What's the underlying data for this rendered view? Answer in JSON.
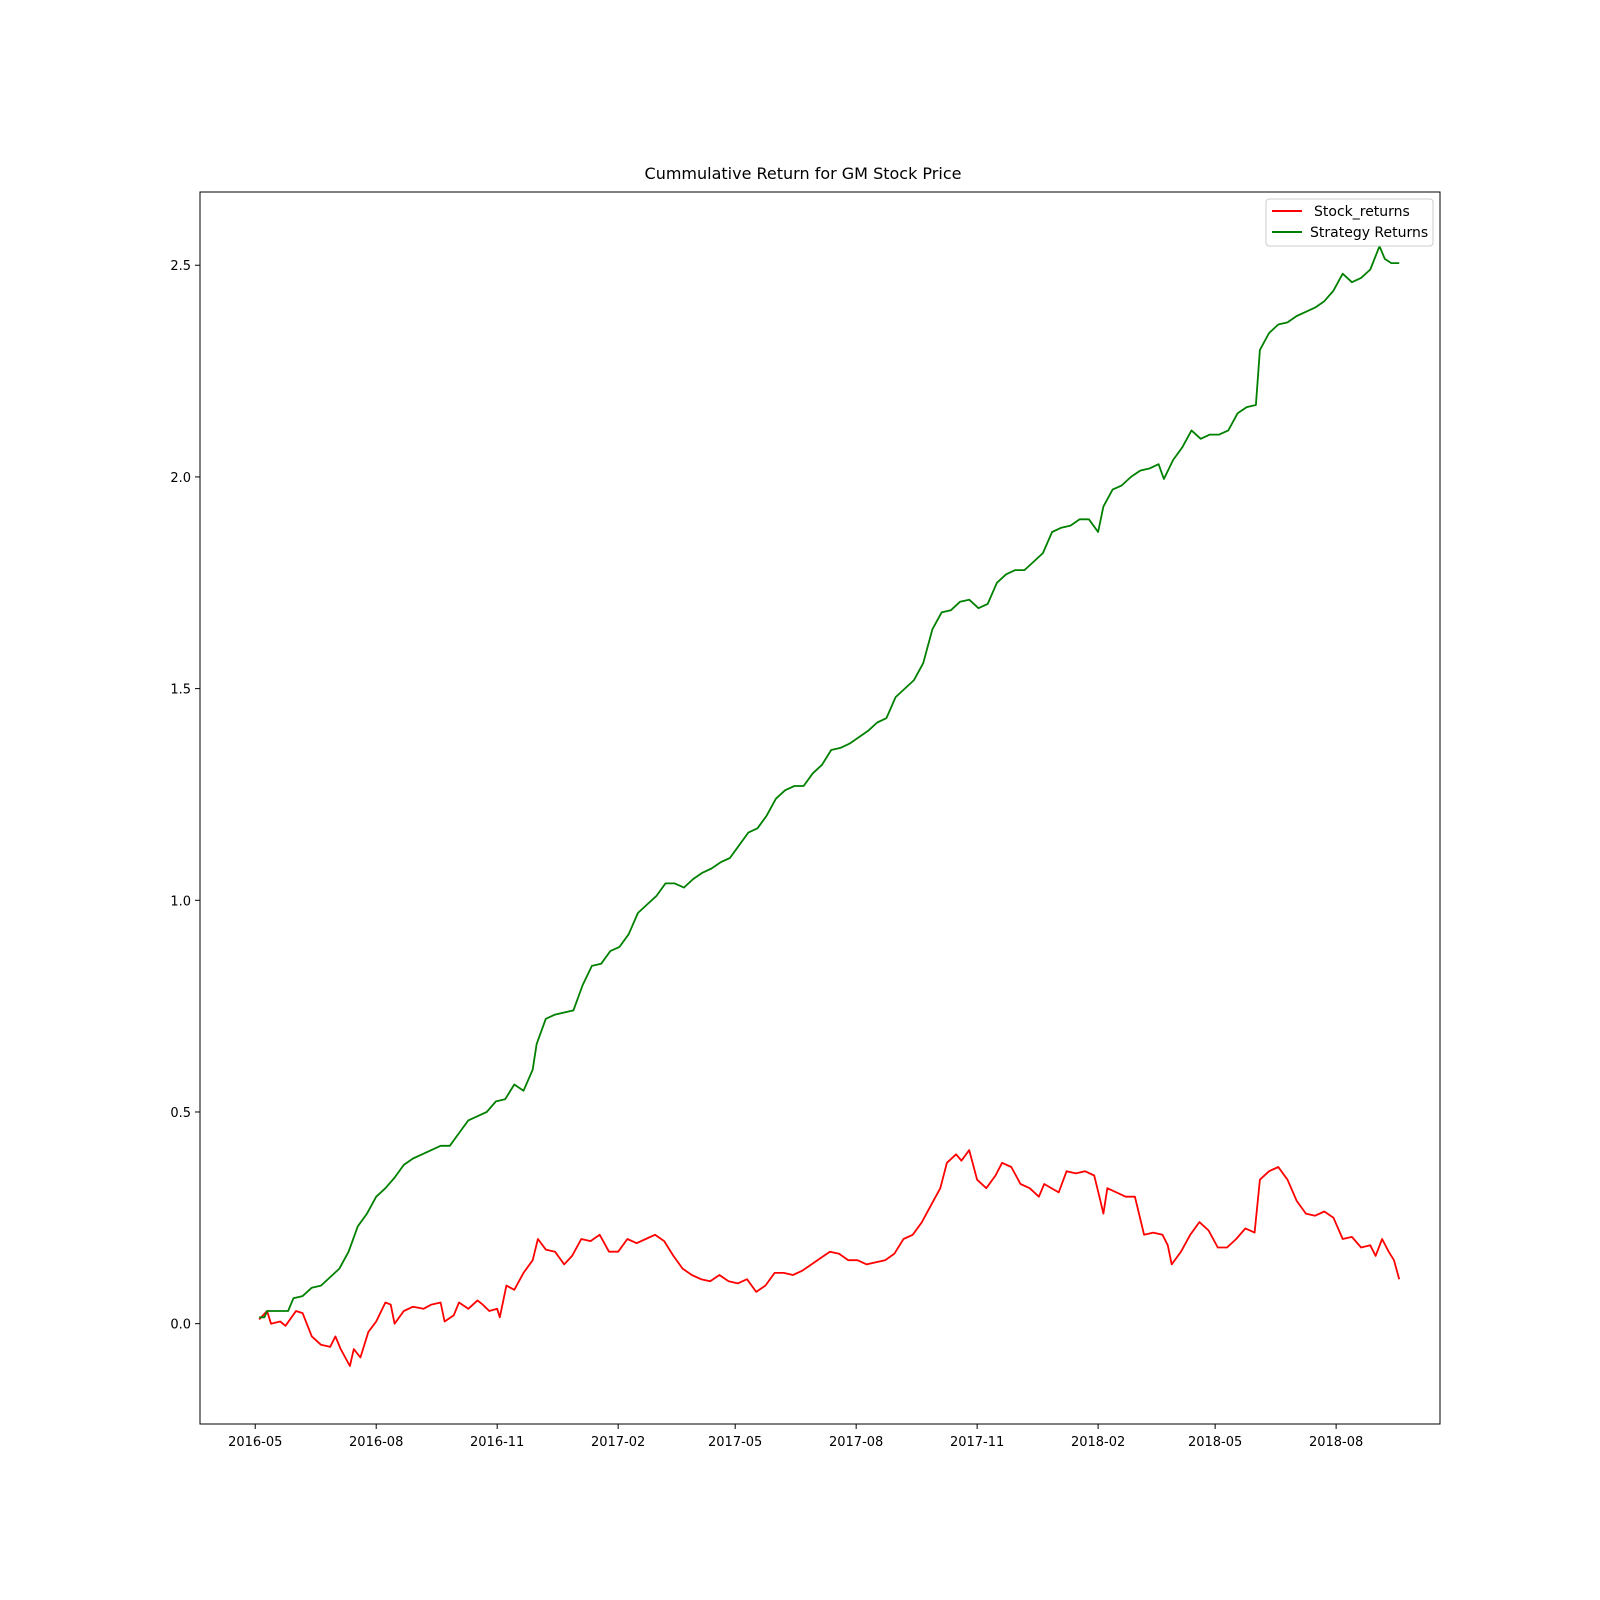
{
  "chart_data": {
    "type": "line",
    "title": "Cummulative Return for GM Stock Price",
    "xlabel": "",
    "ylabel": "",
    "x_range": [
      "2016-03-20",
      "2018-10-19"
    ],
    "ylim": [
      -0.237,
      2.673
    ],
    "x_ticks": [
      {
        "date": "2016-05-01",
        "label": "2016-05"
      },
      {
        "date": "2016-08-01",
        "label": "2016-08"
      },
      {
        "date": "2016-11-01",
        "label": "2016-11"
      },
      {
        "date": "2017-02-01",
        "label": "2017-02"
      },
      {
        "date": "2017-05-01",
        "label": "2017-05"
      },
      {
        "date": "2017-08-01",
        "label": "2017-08"
      },
      {
        "date": "2017-11-01",
        "label": "2017-11"
      },
      {
        "date": "2018-02-01",
        "label": "2018-02"
      },
      {
        "date": "2018-05-01",
        "label": "2018-05"
      },
      {
        "date": "2018-08-01",
        "label": "2018-08"
      }
    ],
    "y_ticks": [
      {
        "value": 0.0,
        "label": "0.0"
      },
      {
        "value": 0.5,
        "label": "0.5"
      },
      {
        "value": 1.0,
        "label": "1.0"
      },
      {
        "value": 1.5,
        "label": "1.5"
      },
      {
        "value": 2.0,
        "label": "2.0"
      },
      {
        "value": 2.5,
        "label": "2.5"
      }
    ],
    "grid": false,
    "legend_position": "top-right",
    "series": [
      {
        "name": "Stock_returns",
        "color": "#ff0000",
        "points": [
          [
            "2016-05-04",
            0.01
          ],
          [
            "2016-05-10",
            0.03
          ],
          [
            "2016-05-13",
            0.0
          ],
          [
            "2016-05-20",
            0.005
          ],
          [
            "2016-05-24",
            -0.005
          ],
          [
            "2016-06-01",
            0.03
          ],
          [
            "2016-06-06",
            0.025
          ],
          [
            "2016-06-13",
            -0.03
          ],
          [
            "2016-06-20",
            -0.05
          ],
          [
            "2016-06-27",
            -0.055
          ],
          [
            "2016-07-01",
            -0.03
          ],
          [
            "2016-07-05",
            -0.06
          ],
          [
            "2016-07-12",
            -0.1
          ],
          [
            "2016-07-15",
            -0.06
          ],
          [
            "2016-07-20",
            -0.08
          ],
          [
            "2016-07-26",
            -0.02
          ],
          [
            "2016-08-01",
            0.005
          ],
          [
            "2016-08-08",
            0.05
          ],
          [
            "2016-08-12",
            0.045
          ],
          [
            "2016-08-15",
            0.0
          ],
          [
            "2016-08-22",
            0.03
          ],
          [
            "2016-08-29",
            0.04
          ],
          [
            "2016-09-06",
            0.035
          ],
          [
            "2016-09-12",
            0.045
          ],
          [
            "2016-09-19",
            0.05
          ],
          [
            "2016-09-22",
            0.005
          ],
          [
            "2016-09-29",
            0.02
          ],
          [
            "2016-10-03",
            0.05
          ],
          [
            "2016-10-10",
            0.035
          ],
          [
            "2016-10-17",
            0.055
          ],
          [
            "2016-10-21",
            0.045
          ],
          [
            "2016-10-26",
            0.03
          ],
          [
            "2016-11-01",
            0.035
          ],
          [
            "2016-11-03",
            0.015
          ],
          [
            "2016-11-08",
            0.09
          ],
          [
            "2016-11-14",
            0.08
          ],
          [
            "2016-11-21",
            0.12
          ],
          [
            "2016-11-28",
            0.15
          ],
          [
            "2016-12-02",
            0.2
          ],
          [
            "2016-12-08",
            0.175
          ],
          [
            "2016-12-15",
            0.17
          ],
          [
            "2016-12-22",
            0.14
          ],
          [
            "2016-12-28",
            0.16
          ],
          [
            "2017-01-04",
            0.2
          ],
          [
            "2017-01-11",
            0.195
          ],
          [
            "2017-01-18",
            0.21
          ],
          [
            "2017-01-25",
            0.17
          ],
          [
            "2017-02-01",
            0.17
          ],
          [
            "2017-02-08",
            0.2
          ],
          [
            "2017-02-15",
            0.19
          ],
          [
            "2017-02-22",
            0.2
          ],
          [
            "2017-03-01",
            0.21
          ],
          [
            "2017-03-08",
            0.195
          ],
          [
            "2017-03-15",
            0.16
          ],
          [
            "2017-03-22",
            0.13
          ],
          [
            "2017-03-29",
            0.115
          ],
          [
            "2017-04-05",
            0.105
          ],
          [
            "2017-04-12",
            0.1
          ],
          [
            "2017-04-19",
            0.115
          ],
          [
            "2017-04-26",
            0.1
          ],
          [
            "2017-05-03",
            0.095
          ],
          [
            "2017-05-10",
            0.105
          ],
          [
            "2017-05-17",
            0.075
          ],
          [
            "2017-05-24",
            0.09
          ],
          [
            "2017-05-31",
            0.12
          ],
          [
            "2017-06-07",
            0.12
          ],
          [
            "2017-06-14",
            0.115
          ],
          [
            "2017-06-21",
            0.125
          ],
          [
            "2017-06-28",
            0.14
          ],
          [
            "2017-07-05",
            0.155
          ],
          [
            "2017-07-12",
            0.17
          ],
          [
            "2017-07-19",
            0.165
          ],
          [
            "2017-07-26",
            0.15
          ],
          [
            "2017-08-02",
            0.15
          ],
          [
            "2017-08-09",
            0.14
          ],
          [
            "2017-08-16",
            0.145
          ],
          [
            "2017-08-23",
            0.15
          ],
          [
            "2017-08-30",
            0.165
          ],
          [
            "2017-09-06",
            0.2
          ],
          [
            "2017-09-13",
            0.21
          ],
          [
            "2017-09-20",
            0.24
          ],
          [
            "2017-09-27",
            0.28
          ],
          [
            "2017-10-04",
            0.32
          ],
          [
            "2017-10-09",
            0.38
          ],
          [
            "2017-10-16",
            0.4
          ],
          [
            "2017-10-20",
            0.385
          ],
          [
            "2017-10-26",
            0.41
          ],
          [
            "2017-11-01",
            0.34
          ],
          [
            "2017-11-08",
            0.32
          ],
          [
            "2017-11-15",
            0.35
          ],
          [
            "2017-11-20",
            0.38
          ],
          [
            "2017-11-27",
            0.37
          ],
          [
            "2017-12-04",
            0.33
          ],
          [
            "2017-12-11",
            0.32
          ],
          [
            "2017-12-18",
            0.3
          ],
          [
            "2017-12-22",
            0.33
          ],
          [
            "2018-01-02",
            0.31
          ],
          [
            "2018-01-08",
            0.36
          ],
          [
            "2018-01-15",
            0.355
          ],
          [
            "2018-01-22",
            0.36
          ],
          [
            "2018-01-29",
            0.35
          ],
          [
            "2018-02-02",
            0.3
          ],
          [
            "2018-02-05",
            0.26
          ],
          [
            "2018-02-08",
            0.32
          ],
          [
            "2018-02-15",
            0.31
          ],
          [
            "2018-02-22",
            0.3
          ],
          [
            "2018-03-01",
            0.3
          ],
          [
            "2018-03-08",
            0.21
          ],
          [
            "2018-03-15",
            0.215
          ],
          [
            "2018-03-22",
            0.21
          ],
          [
            "2018-03-26",
            0.185
          ],
          [
            "2018-03-29",
            0.14
          ],
          [
            "2018-04-05",
            0.17
          ],
          [
            "2018-04-12",
            0.21
          ],
          [
            "2018-04-19",
            0.24
          ],
          [
            "2018-04-26",
            0.22
          ],
          [
            "2018-05-03",
            0.18
          ],
          [
            "2018-05-10",
            0.18
          ],
          [
            "2018-05-17",
            0.2
          ],
          [
            "2018-05-24",
            0.225
          ],
          [
            "2018-05-31",
            0.215
          ],
          [
            "2018-06-04",
            0.34
          ],
          [
            "2018-06-11",
            0.36
          ],
          [
            "2018-06-18",
            0.37
          ],
          [
            "2018-06-25",
            0.34
          ],
          [
            "2018-07-02",
            0.29
          ],
          [
            "2018-07-09",
            0.26
          ],
          [
            "2018-07-16",
            0.255
          ],
          [
            "2018-07-23",
            0.265
          ],
          [
            "2018-07-30",
            0.25
          ],
          [
            "2018-08-06",
            0.2
          ],
          [
            "2018-08-13",
            0.205
          ],
          [
            "2018-08-20",
            0.18
          ],
          [
            "2018-08-27",
            0.185
          ],
          [
            "2018-08-31",
            0.16
          ],
          [
            "2018-09-05",
            0.2
          ],
          [
            "2018-09-10",
            0.17
          ],
          [
            "2018-09-14",
            0.15
          ],
          [
            "2018-09-18",
            0.105
          ]
        ]
      },
      {
        "name": "Strategy Returns",
        "color": "#008000",
        "points": [
          [
            "2016-05-04",
            0.015
          ],
          [
            "2016-05-08",
            0.015
          ],
          [
            "2016-05-10",
            0.03
          ],
          [
            "2016-05-20",
            0.03
          ],
          [
            "2016-05-26",
            0.03
          ],
          [
            "2016-05-30",
            0.06
          ],
          [
            "2016-06-06",
            0.065
          ],
          [
            "2016-06-13",
            0.085
          ],
          [
            "2016-06-20",
            0.09
          ],
          [
            "2016-06-27",
            0.11
          ],
          [
            "2016-07-04",
            0.13
          ],
          [
            "2016-07-11",
            0.17
          ],
          [
            "2016-07-18",
            0.23
          ],
          [
            "2016-07-25",
            0.26
          ],
          [
            "2016-08-01",
            0.3
          ],
          [
            "2016-08-08",
            0.32
          ],
          [
            "2016-08-15",
            0.345
          ],
          [
            "2016-08-22",
            0.375
          ],
          [
            "2016-08-29",
            0.39
          ],
          [
            "2016-09-05",
            0.4
          ],
          [
            "2016-09-12",
            0.41
          ],
          [
            "2016-09-19",
            0.42
          ],
          [
            "2016-09-26",
            0.42
          ],
          [
            "2016-10-03",
            0.45
          ],
          [
            "2016-10-10",
            0.48
          ],
          [
            "2016-10-17",
            0.49
          ],
          [
            "2016-10-24",
            0.5
          ],
          [
            "2016-10-31",
            0.525
          ],
          [
            "2016-11-07",
            0.53
          ],
          [
            "2016-11-14",
            0.565
          ],
          [
            "2016-11-21",
            0.55
          ],
          [
            "2016-11-28",
            0.6
          ],
          [
            "2016-12-01",
            0.66
          ],
          [
            "2016-12-08",
            0.72
          ],
          [
            "2016-12-15",
            0.73
          ],
          [
            "2016-12-22",
            0.735
          ],
          [
            "2016-12-29",
            0.74
          ],
          [
            "2017-01-05",
            0.8
          ],
          [
            "2017-01-12",
            0.845
          ],
          [
            "2017-01-19",
            0.85
          ],
          [
            "2017-01-26",
            0.88
          ],
          [
            "2017-02-02",
            0.89
          ],
          [
            "2017-02-09",
            0.92
          ],
          [
            "2017-02-16",
            0.97
          ],
          [
            "2017-02-23",
            0.99
          ],
          [
            "2017-03-02",
            1.01
          ],
          [
            "2017-03-09",
            1.04
          ],
          [
            "2017-03-16",
            1.04
          ],
          [
            "2017-03-23",
            1.03
          ],
          [
            "2017-03-30",
            1.05
          ],
          [
            "2017-04-06",
            1.065
          ],
          [
            "2017-04-13",
            1.075
          ],
          [
            "2017-04-20",
            1.09
          ],
          [
            "2017-04-27",
            1.1
          ],
          [
            "2017-05-04",
            1.13
          ],
          [
            "2017-05-11",
            1.16
          ],
          [
            "2017-05-18",
            1.17
          ],
          [
            "2017-05-25",
            1.2
          ],
          [
            "2017-06-01",
            1.24
          ],
          [
            "2017-06-08",
            1.26
          ],
          [
            "2017-06-15",
            1.27
          ],
          [
            "2017-06-22",
            1.27
          ],
          [
            "2017-06-29",
            1.3
          ],
          [
            "2017-07-06",
            1.32
          ],
          [
            "2017-07-13",
            1.355
          ],
          [
            "2017-07-20",
            1.36
          ],
          [
            "2017-07-27",
            1.37
          ],
          [
            "2017-08-03",
            1.385
          ],
          [
            "2017-08-10",
            1.4
          ],
          [
            "2017-08-17",
            1.42
          ],
          [
            "2017-08-24",
            1.43
          ],
          [
            "2017-08-31",
            1.48
          ],
          [
            "2017-09-07",
            1.5
          ],
          [
            "2017-09-14",
            1.52
          ],
          [
            "2017-09-21",
            1.56
          ],
          [
            "2017-09-28",
            1.64
          ],
          [
            "2017-10-05",
            1.68
          ],
          [
            "2017-10-12",
            1.685
          ],
          [
            "2017-10-19",
            1.705
          ],
          [
            "2017-10-26",
            1.71
          ],
          [
            "2017-11-02",
            1.69
          ],
          [
            "2017-11-09",
            1.7
          ],
          [
            "2017-11-16",
            1.75
          ],
          [
            "2017-11-23",
            1.77
          ],
          [
            "2017-11-30",
            1.78
          ],
          [
            "2017-12-07",
            1.78
          ],
          [
            "2017-12-14",
            1.8
          ],
          [
            "2017-12-21",
            1.82
          ],
          [
            "2017-12-28",
            1.87
          ],
          [
            "2018-01-04",
            1.88
          ],
          [
            "2018-01-11",
            1.885
          ],
          [
            "2018-01-18",
            1.9
          ],
          [
            "2018-01-25",
            1.9
          ],
          [
            "2018-02-01",
            1.87
          ],
          [
            "2018-02-05",
            1.93
          ],
          [
            "2018-02-12",
            1.97
          ],
          [
            "2018-02-19",
            1.98
          ],
          [
            "2018-02-26",
            2.0
          ],
          [
            "2018-03-05",
            2.015
          ],
          [
            "2018-03-12",
            2.02
          ],
          [
            "2018-03-19",
            2.03
          ],
          [
            "2018-03-23",
            1.995
          ],
          [
            "2018-03-30",
            2.04
          ],
          [
            "2018-04-06",
            2.07
          ],
          [
            "2018-04-13",
            2.11
          ],
          [
            "2018-04-20",
            2.09
          ],
          [
            "2018-04-27",
            2.1
          ],
          [
            "2018-05-04",
            2.1
          ],
          [
            "2018-05-11",
            2.11
          ],
          [
            "2018-05-18",
            2.15
          ],
          [
            "2018-05-25",
            2.165
          ],
          [
            "2018-06-01",
            2.17
          ],
          [
            "2018-06-04",
            2.3
          ],
          [
            "2018-06-11",
            2.34
          ],
          [
            "2018-06-18",
            2.36
          ],
          [
            "2018-06-25",
            2.365
          ],
          [
            "2018-07-02",
            2.38
          ],
          [
            "2018-07-09",
            2.39
          ],
          [
            "2018-07-16",
            2.4
          ],
          [
            "2018-07-23",
            2.415
          ],
          [
            "2018-07-30",
            2.44
          ],
          [
            "2018-08-06",
            2.48
          ],
          [
            "2018-08-13",
            2.46
          ],
          [
            "2018-08-20",
            2.47
          ],
          [
            "2018-08-27",
            2.49
          ],
          [
            "2018-09-03",
            2.545
          ],
          [
            "2018-09-07",
            2.515
          ],
          [
            "2018-09-12",
            2.505
          ],
          [
            "2018-09-18",
            2.505
          ]
        ]
      }
    ]
  }
}
